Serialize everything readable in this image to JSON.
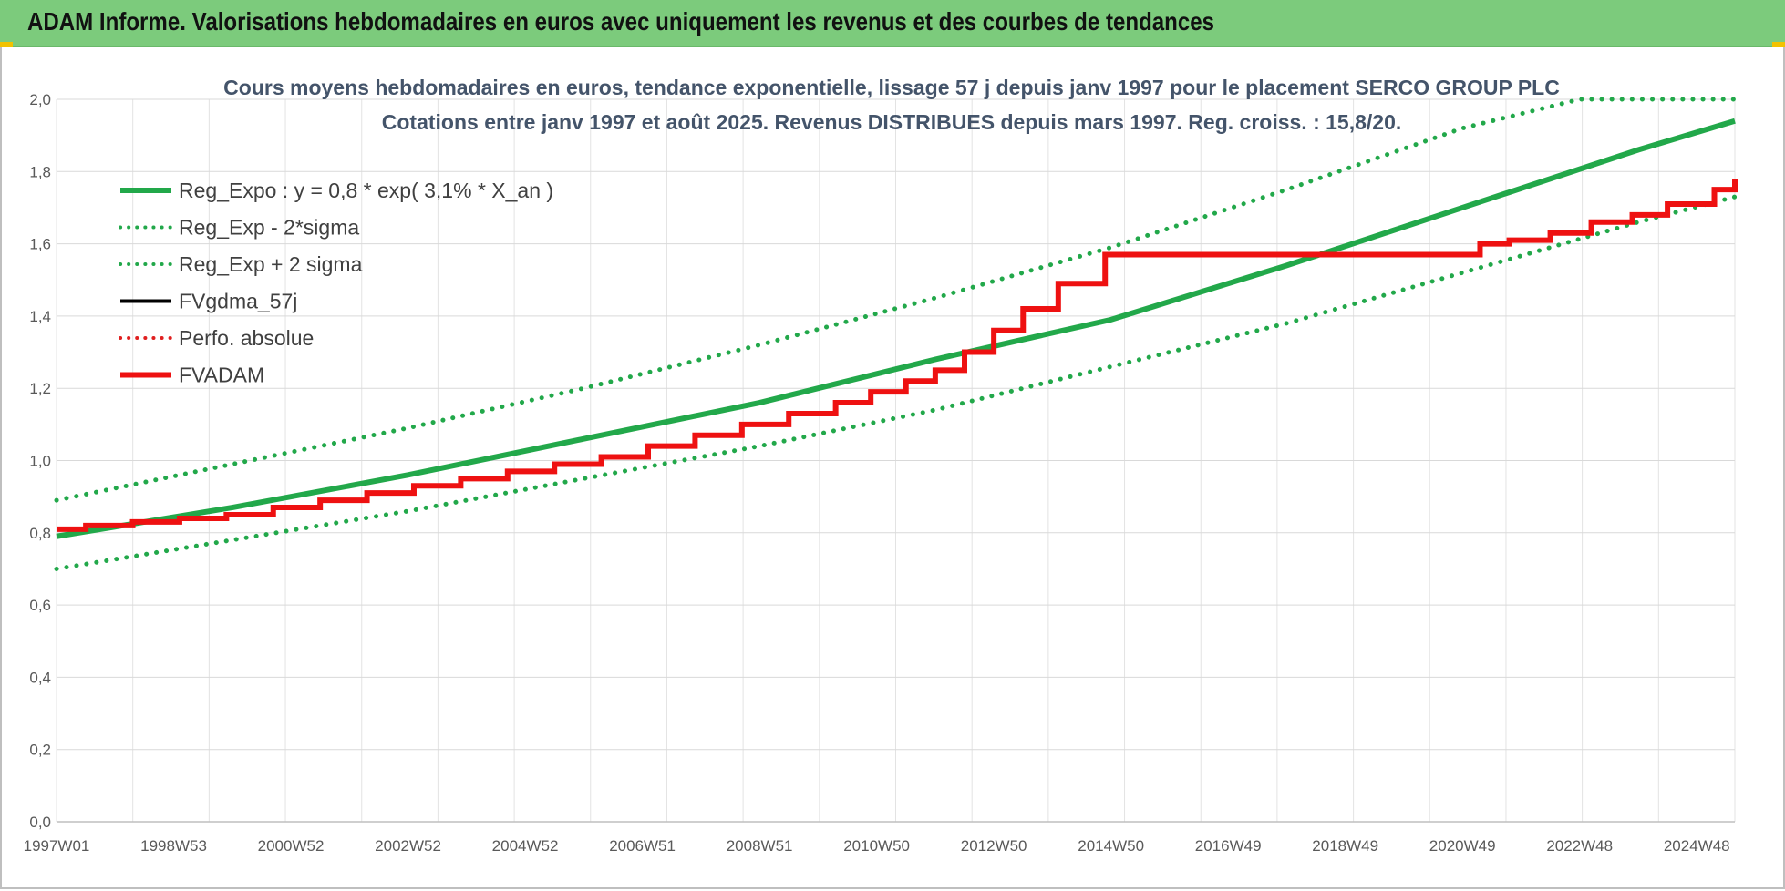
{
  "header": {
    "title": "ADAM Informe. Valorisations hebdomadaires en euros avec uniquement les revenus et des courbes de tendances"
  },
  "chart_data": {
    "type": "line",
    "title_lines": [
      "Cours moyens hebdomadaires en euros, tendance exponentielle, lissage 57 j depuis janv 1997 pour le placement SERCO GROUP PLC",
      "Cotations entre janv 1997 et août 2025.  Revenus DISTRIBUES depuis mars 1997. Reg. croiss. : 15,8/20."
    ],
    "xlabel": "",
    "ylabel": "",
    "ylim": [
      0,
      2.0
    ],
    "xlim": [
      1997.0,
      2025.65
    ],
    "y_ticks": [
      "0,0",
      "0,2",
      "0,4",
      "0,6",
      "0,8",
      "1,0",
      "1,2",
      "1,4",
      "1,6",
      "1,8",
      "2,0"
    ],
    "x_ticks": [
      {
        "label": "1997W01",
        "x": 1997.0
      },
      {
        "label": "1998W53",
        "x": 1999.0
      },
      {
        "label": "2000W52",
        "x": 2001.0
      },
      {
        "label": "2002W52",
        "x": 2003.0
      },
      {
        "label": "2004W52",
        "x": 2005.0
      },
      {
        "label": "2006W51",
        "x": 2007.0
      },
      {
        "label": "2008W51",
        "x": 2009.0
      },
      {
        "label": "2010W50",
        "x": 2011.0
      },
      {
        "label": "2012W50",
        "x": 2013.0
      },
      {
        "label": "2014W50",
        "x": 2015.0
      },
      {
        "label": "2016W49",
        "x": 2017.0
      },
      {
        "label": "2018W49",
        "x": 2019.0
      },
      {
        "label": "2020W49",
        "x": 2021.0
      },
      {
        "label": "2022W48",
        "x": 2023.0
      },
      {
        "label": "2024W48",
        "x": 2025.0
      }
    ],
    "grid": true,
    "legend_position": "top-left",
    "series": [
      {
        "name": "Reg_Expo : y = 0,8 * exp( 3,1% *  X_an )",
        "color": "#22a84a",
        "style": "solid",
        "x": [
          1997.0,
          2000.0,
          2003.0,
          2006.0,
          2009.0,
          2012.0,
          2015.0,
          2018.0,
          2021.0,
          2024.0,
          2025.65
        ],
        "y": [
          0.79,
          0.87,
          0.96,
          1.06,
          1.16,
          1.28,
          1.39,
          1.54,
          1.7,
          1.86,
          1.94
        ]
      },
      {
        "name": "Reg_Exp - 2*sigma",
        "color": "#22a84a",
        "style": "dotted",
        "x": [
          1997.0,
          2000.0,
          2003.0,
          2006.0,
          2009.0,
          2012.0,
          2015.0,
          2018.0,
          2021.0,
          2024.0,
          2025.65
        ],
        "y": [
          0.7,
          0.78,
          0.86,
          0.95,
          1.04,
          1.14,
          1.26,
          1.38,
          1.52,
          1.66,
          1.73
        ]
      },
      {
        "name": "Reg_Exp + 2 sigma",
        "color": "#22a84a",
        "style": "dotted",
        "x": [
          1997.0,
          2000.0,
          2003.0,
          2006.0,
          2009.0,
          2012.0,
          2015.0,
          2018.0,
          2021.0,
          2023.0,
          2025.65
        ],
        "y": [
          0.89,
          0.99,
          1.09,
          1.2,
          1.32,
          1.45,
          1.59,
          1.75,
          1.92,
          2.0,
          2.0
        ]
      },
      {
        "name": "FVgdma_57j",
        "color": "#000000",
        "style": "step",
        "x": [
          1997.0,
          1997.5,
          1998.3,
          1999.1,
          1999.9,
          2000.7,
          2001.5,
          2002.3,
          2003.1,
          2003.9,
          2004.7,
          2005.5,
          2006.3,
          2007.1,
          2007.9,
          2008.7,
          2009.5,
          2010.3,
          2010.9,
          2011.5,
          2012.0,
          2012.5,
          2013.0,
          2013.5,
          2014.1,
          2014.9,
          2021.3,
          2021.8,
          2022.5,
          2023.2,
          2023.9,
          2024.5,
          2025.3,
          2025.65
        ],
        "y": [
          0.81,
          0.82,
          0.83,
          0.84,
          0.85,
          0.87,
          0.89,
          0.91,
          0.93,
          0.95,
          0.97,
          0.99,
          1.01,
          1.04,
          1.07,
          1.1,
          1.13,
          1.16,
          1.19,
          1.22,
          1.25,
          1.3,
          1.36,
          1.42,
          1.49,
          1.57,
          1.6,
          1.61,
          1.63,
          1.66,
          1.68,
          1.71,
          1.75,
          1.78
        ]
      },
      {
        "name": "Perfo. absolue",
        "color": "#e02020",
        "style": "dotted",
        "x": [],
        "y": []
      },
      {
        "name": "FVADAM",
        "color": "#ee1111",
        "style": "step",
        "x": [
          1997.0,
          1997.5,
          1998.3,
          1999.1,
          1999.9,
          2000.7,
          2001.5,
          2002.3,
          2003.1,
          2003.9,
          2004.7,
          2005.5,
          2006.3,
          2007.1,
          2007.9,
          2008.7,
          2009.5,
          2010.3,
          2010.9,
          2011.5,
          2012.0,
          2012.5,
          2013.0,
          2013.5,
          2014.1,
          2014.9,
          2021.3,
          2021.8,
          2022.5,
          2023.2,
          2023.9,
          2024.5,
          2025.3,
          2025.65
        ],
        "y": [
          0.81,
          0.82,
          0.83,
          0.84,
          0.85,
          0.87,
          0.89,
          0.91,
          0.93,
          0.95,
          0.97,
          0.99,
          1.01,
          1.04,
          1.07,
          1.1,
          1.13,
          1.16,
          1.19,
          1.22,
          1.25,
          1.3,
          1.36,
          1.42,
          1.49,
          1.57,
          1.6,
          1.61,
          1.63,
          1.66,
          1.68,
          1.71,
          1.75,
          1.78
        ]
      }
    ]
  }
}
